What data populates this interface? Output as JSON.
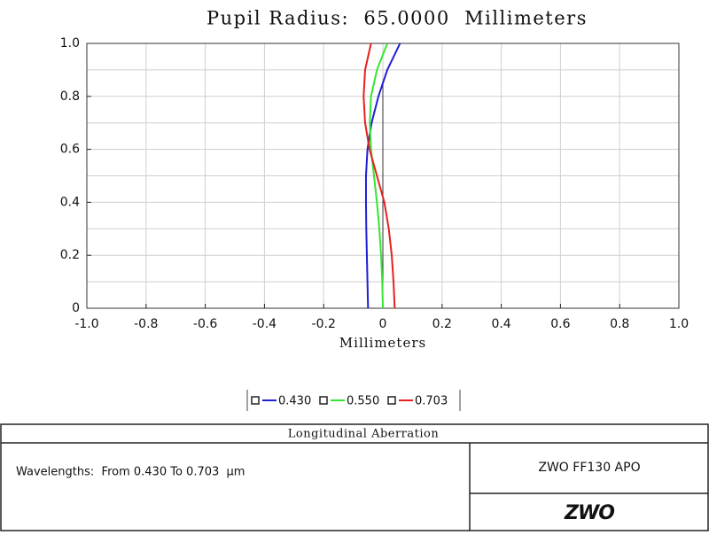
{
  "chart_data": {
    "type": "line",
    "title": "Pupil Radius:  65.0000  Millimeters",
    "x_label": "Millimeters",
    "orientation": "horizontal",
    "y": [
      0,
      0.1,
      0.2,
      0.3,
      0.4,
      0.5,
      0.6,
      0.7,
      0.8,
      0.9,
      1.0
    ],
    "series": [
      {
        "name": "0.430",
        "color": "#1f1fd6",
        "values": [
          -0.05,
          -0.052,
          -0.054,
          -0.056,
          -0.057,
          -0.057,
          -0.052,
          -0.038,
          -0.015,
          0.015,
          0.058
        ]
      },
      {
        "name": "0.550",
        "color": "#33e633",
        "values": [
          0.0,
          -0.002,
          -0.006,
          -0.012,
          -0.02,
          -0.03,
          -0.04,
          -0.044,
          -0.04,
          -0.02,
          0.015
        ]
      },
      {
        "name": "0.703",
        "color": "#e62020",
        "values": [
          0.04,
          0.036,
          0.03,
          0.02,
          0.005,
          -0.02,
          -0.045,
          -0.06,
          -0.065,
          -0.06,
          -0.04
        ]
      }
    ],
    "xlim": [
      -1,
      1
    ],
    "ylim": [
      0,
      1
    ],
    "xticks": [
      {
        "value": -1,
        "label": "-1.0"
      },
      -0.8,
      -0.6,
      -0.4,
      -0.2,
      0,
      0.2,
      0.4,
      0.6,
      0.8,
      {
        "value": 1,
        "label": "1.0"
      }
    ],
    "yticks": [
      0,
      0.2,
      0.4,
      0.6,
      0.8,
      {
        "value": 1,
        "label": "1.0"
      }
    ],
    "y_minor_ticks": [
      0.1,
      0.3,
      0.5,
      0.7,
      0.9
    ],
    "grid": true
  },
  "footer": {
    "plot_name": "Longitudinal Aberration",
    "wavelengths": "Wavelengths:  From 0.430 To 0.703  µm",
    "system": "ZWO FF130 APO",
    "logo": "ZWO"
  }
}
